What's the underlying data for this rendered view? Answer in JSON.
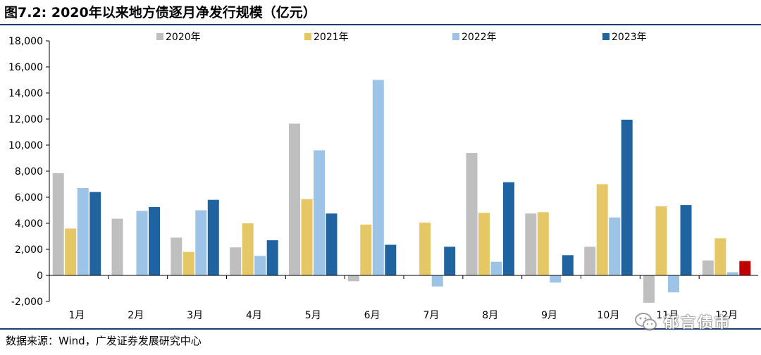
{
  "header": {
    "title": "图7.2:  2020年以来地方债逐月净发行规模（亿元）"
  },
  "footer": {
    "source": "数据来源：Wind，广发证券发展研究中心"
  },
  "watermark": {
    "text": "郁言债市"
  },
  "colors": {
    "axis": "#000000",
    "title_rule": "#1f3f6e",
    "last_bar_highlight": "#c00000"
  },
  "chart_data": {
    "type": "bar",
    "title": "",
    "xlabel": "",
    "ylabel": "",
    "ylim": [
      -2000,
      18000
    ],
    "yticks": [
      -2000,
      0,
      2000,
      4000,
      6000,
      8000,
      10000,
      12000,
      14000,
      16000,
      18000
    ],
    "ytick_labels": [
      "-2,000",
      "0",
      "2,000",
      "4,000",
      "6,000",
      "8,000",
      "10,000",
      "12,000",
      "14,000",
      "16,000",
      "18,000"
    ],
    "grid": false,
    "legend_position": "top",
    "categories": [
      "1月",
      "2月",
      "3月",
      "4月",
      "5月",
      "6月",
      "7月",
      "8月",
      "9月",
      "10月",
      "11月",
      "12月"
    ],
    "series": [
      {
        "name": "2020年",
        "color": "#bfbfbf",
        "values": [
          7850,
          4350,
          2900,
          2150,
          11650,
          -450,
          0,
          9400,
          4750,
          2200,
          -2100,
          1150
        ]
      },
      {
        "name": "2021年",
        "color": "#e5c766",
        "values": [
          3600,
          0,
          1800,
          4000,
          5850,
          3900,
          4050,
          4800,
          4850,
          7000,
          5300,
          2850
        ]
      },
      {
        "name": "2022年",
        "color": "#9dc3e6",
        "values": [
          6700,
          4950,
          5000,
          1500,
          9600,
          15000,
          -850,
          1050,
          -550,
          4450,
          -1300,
          250
        ]
      },
      {
        "name": "2023年",
        "color": "#1f64a0",
        "values": [
          6400,
          5250,
          5800,
          2700,
          4750,
          2350,
          2200,
          7150,
          1550,
          11950,
          5400,
          1100
        ]
      }
    ]
  }
}
